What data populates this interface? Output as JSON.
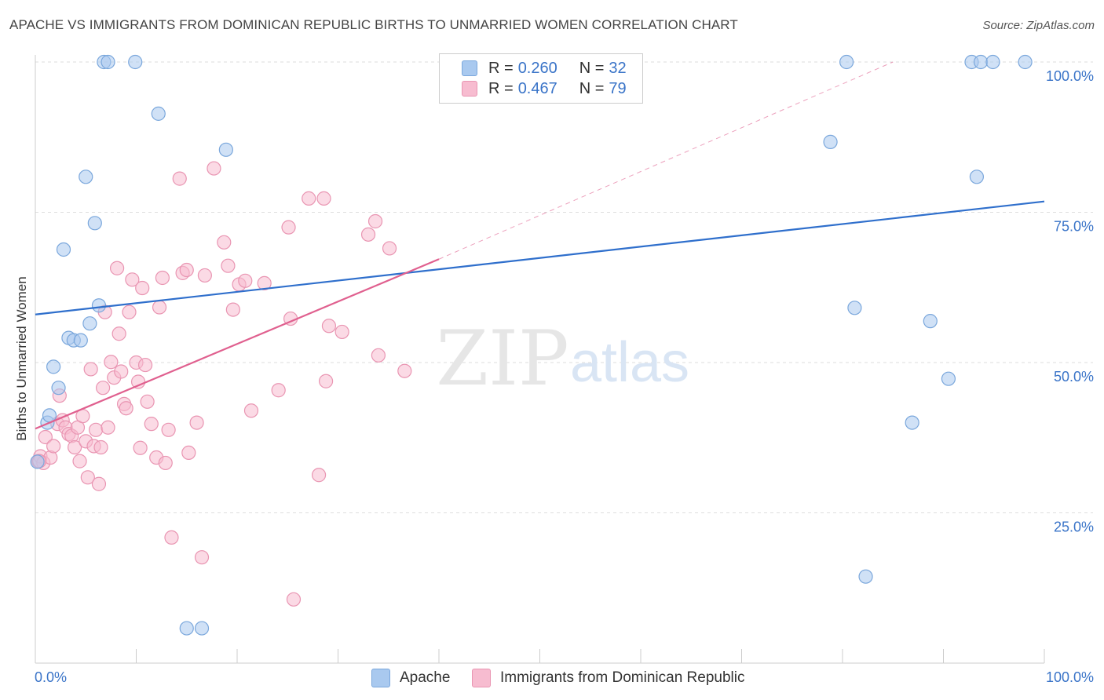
{
  "title": "APACHE VS IMMIGRANTS FROM DOMINICAN REPUBLIC BIRTHS TO UNMARRIED WOMEN CORRELATION CHART",
  "source": "Source: ZipAtlas.com",
  "watermark": {
    "zip": "ZIP",
    "atlas": "atlas"
  },
  "colors": {
    "blue_fill": "#a9c9ef",
    "blue_stroke": "#7aa7dc",
    "blue_line": "#2f6fcc",
    "pink_fill": "#f7bcd0",
    "pink_stroke": "#e995b2",
    "pink_line": "#e0608f",
    "axis_text": "#3a74c8",
    "grid": "#dddddd"
  },
  "legend": {
    "rows": [
      {
        "r_label": "R = ",
        "r_value": "0.260",
        "n_label": "N = ",
        "n_value": "32"
      },
      {
        "r_label": "R = ",
        "r_value": "0.467",
        "n_label": "N = ",
        "n_value": "79"
      }
    ]
  },
  "bottom_legend": [
    "Apache",
    "Immigrants from Dominican Republic"
  ],
  "chart_data": {
    "type": "scatter",
    "title": "APACHE VS IMMIGRANTS FROM DOMINICAN REPUBLIC BIRTHS TO UNMARRIED WOMEN CORRELATION CHART",
    "xlabel": "",
    "ylabel": "Births to Unmarried Women",
    "xlim": [
      0,
      100
    ],
    "ylim": [
      0,
      100
    ],
    "x_tick_labels": [
      "0.0%",
      "100.0%"
    ],
    "y_tick_labels": [
      "100.0%",
      "75.0%",
      "50.0%",
      "25.0%"
    ],
    "y_tick_values": [
      100,
      75,
      50,
      25
    ],
    "series": [
      {
        "name": "Apache",
        "color": "blue",
        "trend": {
          "x": [
            0,
            100
          ],
          "y": [
            58,
            76.8
          ],
          "style": "solid"
        },
        "points": [
          [
            0.2,
            33.5
          ],
          [
            1.2,
            40.0
          ],
          [
            1.4,
            41.2
          ],
          [
            1.8,
            49.3
          ],
          [
            2.3,
            45.8
          ],
          [
            2.8,
            68.8
          ],
          [
            3.3,
            54.1
          ],
          [
            3.8,
            53.7
          ],
          [
            4.5,
            53.7
          ],
          [
            5.0,
            80.9
          ],
          [
            5.4,
            56.5
          ],
          [
            5.9,
            73.2
          ],
          [
            6.3,
            59.5
          ],
          [
            6.8,
            100.0
          ],
          [
            7.2,
            100.0
          ],
          [
            9.9,
            100.0
          ],
          [
            12.2,
            91.4
          ],
          [
            15.0,
            5.8
          ],
          [
            16.5,
            5.8
          ],
          [
            18.9,
            85.4
          ],
          [
            78.8,
            86.7
          ],
          [
            80.4,
            100.0
          ],
          [
            81.2,
            59.1
          ],
          [
            82.3,
            14.4
          ],
          [
            86.9,
            40.0
          ],
          [
            88.7,
            56.9
          ],
          [
            90.5,
            47.3
          ],
          [
            92.8,
            100.0
          ],
          [
            93.3,
            80.9
          ],
          [
            93.7,
            100.0
          ],
          [
            94.9,
            100.0
          ],
          [
            98.1,
            100.0
          ]
        ]
      },
      {
        "name": "Immigrants from Dominican Republic",
        "color": "pink",
        "trend": {
          "x": [
            0,
            40
          ],
          "y": [
            39,
            67.2
          ],
          "style": "solid",
          "extension": {
            "x": [
              40,
              85
            ],
            "y": [
              67.2,
              100
            ],
            "style": "dashed"
          }
        },
        "points": [
          [
            0.3,
            33.6
          ],
          [
            0.5,
            34.4
          ],
          [
            0.8,
            33.3
          ],
          [
            1.0,
            37.6
          ],
          [
            1.5,
            34.2
          ],
          [
            1.8,
            36.1
          ],
          [
            2.2,
            39.8
          ],
          [
            2.4,
            44.5
          ],
          [
            2.7,
            40.4
          ],
          [
            3.0,
            39.2
          ],
          [
            3.3,
            38.1
          ],
          [
            3.6,
            37.8
          ],
          [
            3.9,
            35.9
          ],
          [
            4.2,
            39.2
          ],
          [
            4.4,
            33.6
          ],
          [
            4.7,
            41.1
          ],
          [
            5.0,
            36.9
          ],
          [
            5.2,
            30.9
          ],
          [
            5.5,
            48.9
          ],
          [
            5.8,
            36.1
          ],
          [
            6.0,
            38.8
          ],
          [
            6.3,
            29.8
          ],
          [
            6.5,
            35.9
          ],
          [
            6.7,
            45.8
          ],
          [
            6.9,
            58.4
          ],
          [
            7.2,
            39.2
          ],
          [
            7.5,
            50.1
          ],
          [
            7.8,
            47.5
          ],
          [
            8.1,
            65.7
          ],
          [
            8.3,
            54.8
          ],
          [
            8.5,
            48.5
          ],
          [
            8.8,
            43.1
          ],
          [
            9.0,
            42.4
          ],
          [
            9.3,
            58.4
          ],
          [
            9.6,
            63.8
          ],
          [
            10.0,
            50.0
          ],
          [
            10.2,
            46.8
          ],
          [
            10.4,
            35.8
          ],
          [
            10.6,
            62.4
          ],
          [
            10.9,
            49.6
          ],
          [
            11.1,
            43.5
          ],
          [
            11.5,
            39.8
          ],
          [
            12.0,
            34.2
          ],
          [
            12.3,
            59.2
          ],
          [
            12.6,
            64.1
          ],
          [
            12.9,
            33.3
          ],
          [
            13.2,
            38.8
          ],
          [
            13.5,
            20.9
          ],
          [
            14.3,
            80.6
          ],
          [
            14.6,
            64.9
          ],
          [
            15.0,
            65.4
          ],
          [
            15.2,
            35.0
          ],
          [
            16.0,
            40.0
          ],
          [
            16.5,
            17.6
          ],
          [
            16.8,
            64.5
          ],
          [
            17.7,
            82.3
          ],
          [
            18.7,
            70.0
          ],
          [
            19.1,
            66.1
          ],
          [
            19.6,
            58.8
          ],
          [
            20.2,
            63.0
          ],
          [
            20.8,
            63.6
          ],
          [
            21.4,
            42.0
          ],
          [
            22.7,
            63.2
          ],
          [
            24.1,
            45.4
          ],
          [
            25.1,
            72.5
          ],
          [
            25.3,
            57.3
          ],
          [
            25.6,
            10.6
          ],
          [
            27.1,
            77.3
          ],
          [
            28.1,
            31.3
          ],
          [
            28.6,
            77.3
          ],
          [
            28.8,
            46.9
          ],
          [
            29.1,
            56.1
          ],
          [
            30.4,
            55.1
          ],
          [
            33.0,
            71.3
          ],
          [
            33.7,
            73.5
          ],
          [
            34.0,
            51.2
          ],
          [
            35.1,
            69.0
          ],
          [
            36.6,
            48.6
          ],
          [
            0.4,
            33.6
          ]
        ]
      }
    ],
    "grid": true,
    "legend_position": "top-center"
  }
}
